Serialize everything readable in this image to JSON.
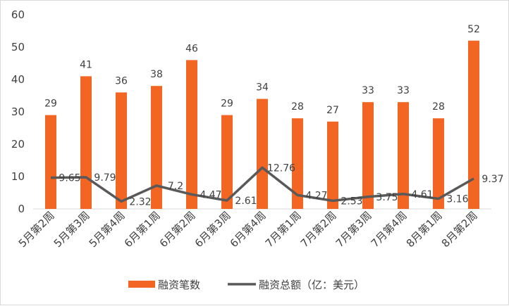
{
  "chart_data": {
    "type": "bar",
    "categories": [
      "5月第2周",
      "5月第3周",
      "5月第4周",
      "6月第1周",
      "6月第2周",
      "6月第3周",
      "6月第4周",
      "7月第1周",
      "7月第2周",
      "7月第3周",
      "7月第4周",
      "8月第1周",
      "8月第2周"
    ],
    "series": [
      {
        "name": "融资笔数",
        "type": "bar",
        "color": "#f26522",
        "values": [
          29,
          41,
          36,
          38,
          46,
          29,
          34,
          28,
          27,
          33,
          33,
          28,
          52
        ],
        "labels": [
          "29",
          "41",
          "36",
          "38",
          "46",
          "29",
          "34",
          "28",
          "27",
          "33",
          "33",
          "28",
          "52"
        ]
      },
      {
        "name": "融资总额（亿：美元）",
        "type": "line",
        "color": "#595959",
        "values": [
          9.65,
          9.79,
          2.32,
          7.2,
          4.47,
          2.61,
          12.76,
          4.27,
          2.53,
          3.75,
          4.61,
          3.16,
          9.37
        ],
        "labels": [
          "9.65",
          "9.79",
          "2.32",
          "7.2",
          "4.47",
          "2.61",
          "12.76",
          "4.27",
          "2.53",
          "3.75",
          "4.61",
          "3.16",
          "9.37"
        ]
      }
    ],
    "ylim": [
      0,
      60
    ],
    "yticks": [
      "0",
      "10",
      "20",
      "30",
      "40",
      "50",
      "60"
    ],
    "grid": false,
    "legend": "bottom-center"
  }
}
